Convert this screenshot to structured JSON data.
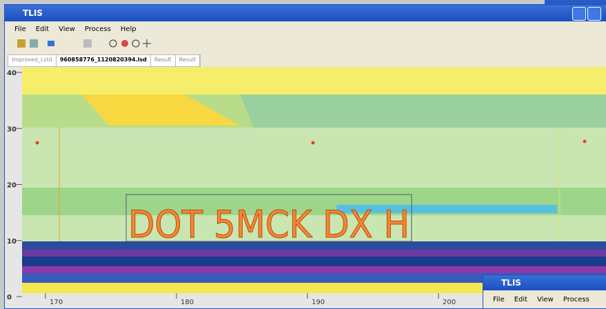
{
  "window": {
    "title": "TLIS",
    "menu": [
      "File",
      "Edit",
      "View",
      "Process",
      "Help"
    ],
    "tabs": [
      "Improved_Lstd",
      "960858776_1120820394.lsd",
      "Result",
      "Result"
    ]
  },
  "plot": {
    "yticks": [
      40,
      30,
      20,
      10,
      0
    ],
    "xticks": [
      170,
      180,
      190,
      200
    ],
    "overlay_text": "DOT 5MCK DX H"
  },
  "second_window": {
    "title": "TLIS",
    "menu": [
      "File",
      "Edit",
      "View",
      "Process"
    ]
  }
}
